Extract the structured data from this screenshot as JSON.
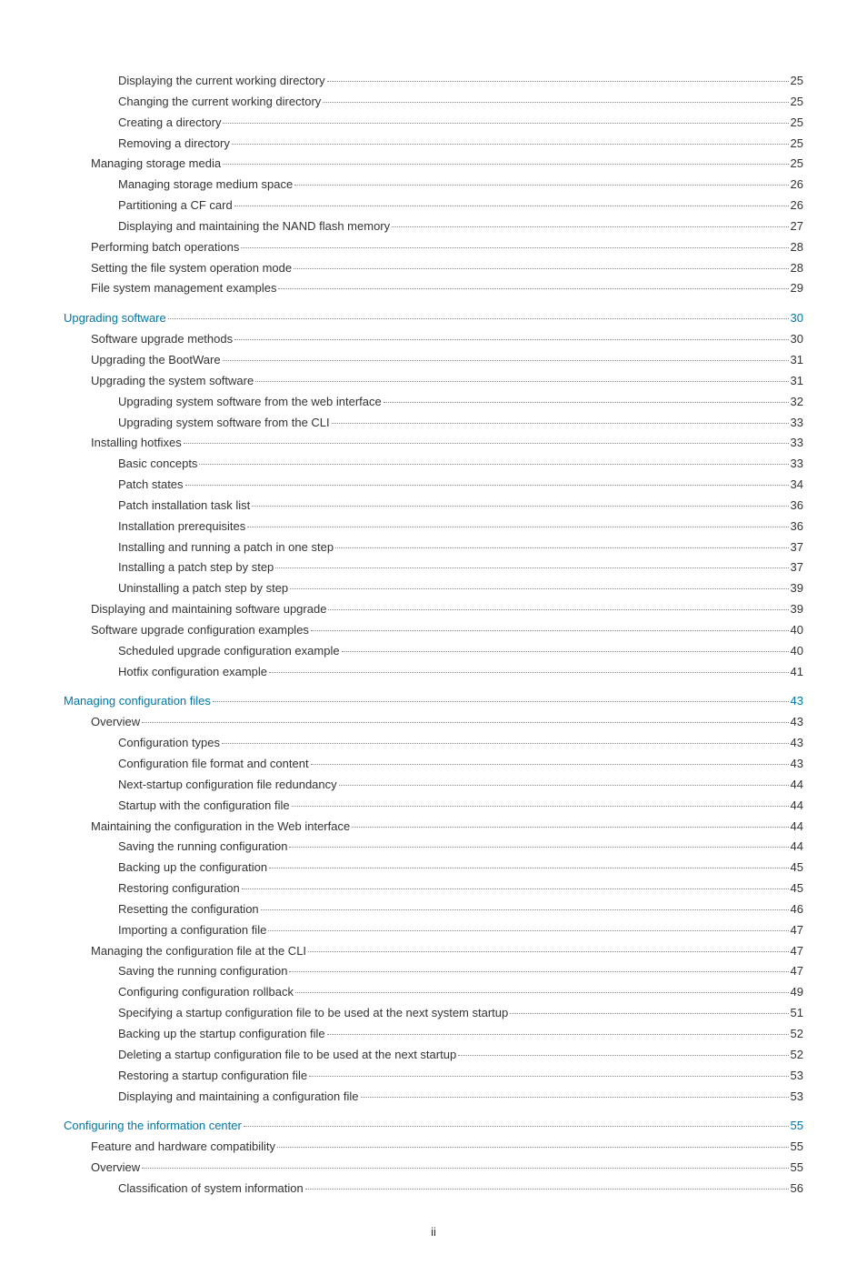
{
  "page_footer": "ii",
  "toc": [
    {
      "label": "Displaying the current working directory",
      "page": "25",
      "indent": 2,
      "link": false,
      "gap": false
    },
    {
      "label": "Changing the current working directory",
      "page": "25",
      "indent": 2,
      "link": false,
      "gap": false
    },
    {
      "label": "Creating a directory",
      "page": "25",
      "indent": 2,
      "link": false,
      "gap": false
    },
    {
      "label": "Removing a directory",
      "page": "25",
      "indent": 2,
      "link": false,
      "gap": false
    },
    {
      "label": "Managing storage media",
      "page": "25",
      "indent": 1,
      "link": false,
      "gap": false
    },
    {
      "label": "Managing storage medium space",
      "page": "26",
      "indent": 2,
      "link": false,
      "gap": false
    },
    {
      "label": "Partitioning a CF card",
      "page": "26",
      "indent": 2,
      "link": false,
      "gap": false
    },
    {
      "label": "Displaying and maintaining the NAND flash memory",
      "page": "27",
      "indent": 2,
      "link": false,
      "gap": false
    },
    {
      "label": "Performing batch operations",
      "page": "28",
      "indent": 1,
      "link": false,
      "gap": false
    },
    {
      "label": "Setting the file system operation mode",
      "page": "28",
      "indent": 1,
      "link": false,
      "gap": false
    },
    {
      "label": "File system management examples",
      "page": "29",
      "indent": 1,
      "link": false,
      "gap": false
    },
    {
      "label": "Upgrading software",
      "page": "30",
      "indent": 0,
      "link": true,
      "gap": true
    },
    {
      "label": "Software upgrade methods",
      "page": "30",
      "indent": 1,
      "link": false,
      "gap": false
    },
    {
      "label": "Upgrading the BootWare",
      "page": "31",
      "indent": 1,
      "link": false,
      "gap": false
    },
    {
      "label": "Upgrading the system software",
      "page": "31",
      "indent": 1,
      "link": false,
      "gap": false
    },
    {
      "label": "Upgrading system software from the web interface",
      "page": "32",
      "indent": 2,
      "link": false,
      "gap": false
    },
    {
      "label": "Upgrading system software from the CLI",
      "page": "33",
      "indent": 2,
      "link": false,
      "gap": false
    },
    {
      "label": "Installing hotfixes",
      "page": "33",
      "indent": 1,
      "link": false,
      "gap": false
    },
    {
      "label": "Basic concepts",
      "page": "33",
      "indent": 2,
      "link": false,
      "gap": false
    },
    {
      "label": "Patch states",
      "page": "34",
      "indent": 2,
      "link": false,
      "gap": false
    },
    {
      "label": "Patch installation task list",
      "page": "36",
      "indent": 2,
      "link": false,
      "gap": false
    },
    {
      "label": "Installation prerequisites",
      "page": "36",
      "indent": 2,
      "link": false,
      "gap": false
    },
    {
      "label": "Installing and running a patch in one step",
      "page": "37",
      "indent": 2,
      "link": false,
      "gap": false
    },
    {
      "label": "Installing a patch step by step",
      "page": "37",
      "indent": 2,
      "link": false,
      "gap": false
    },
    {
      "label": "Uninstalling a patch step by step",
      "page": "39",
      "indent": 2,
      "link": false,
      "gap": false
    },
    {
      "label": "Displaying and maintaining software upgrade",
      "page": "39",
      "indent": 1,
      "link": false,
      "gap": false
    },
    {
      "label": "Software upgrade configuration examples",
      "page": "40",
      "indent": 1,
      "link": false,
      "gap": false
    },
    {
      "label": "Scheduled upgrade configuration example",
      "page": "40",
      "indent": 2,
      "link": false,
      "gap": false
    },
    {
      "label": "Hotfix configuration example",
      "page": "41",
      "indent": 2,
      "link": false,
      "gap": false
    },
    {
      "label": "Managing configuration files",
      "page": "43",
      "indent": 0,
      "link": true,
      "gap": true
    },
    {
      "label": "Overview",
      "page": "43",
      "indent": 1,
      "link": false,
      "gap": false
    },
    {
      "label": "Configuration types",
      "page": "43",
      "indent": 2,
      "link": false,
      "gap": false
    },
    {
      "label": "Configuration file format and content",
      "page": "43",
      "indent": 2,
      "link": false,
      "gap": false
    },
    {
      "label": "Next-startup configuration file redundancy",
      "page": "44",
      "indent": 2,
      "link": false,
      "gap": false
    },
    {
      "label": "Startup with the configuration file",
      "page": "44",
      "indent": 2,
      "link": false,
      "gap": false
    },
    {
      "label": "Maintaining the configuration in the Web interface",
      "page": "44",
      "indent": 1,
      "link": false,
      "gap": false
    },
    {
      "label": "Saving the running configuration",
      "page": "44",
      "indent": 2,
      "link": false,
      "gap": false
    },
    {
      "label": "Backing up the configuration",
      "page": "45",
      "indent": 2,
      "link": false,
      "gap": false
    },
    {
      "label": "Restoring configuration",
      "page": "45",
      "indent": 2,
      "link": false,
      "gap": false
    },
    {
      "label": "Resetting the configuration",
      "page": "46",
      "indent": 2,
      "link": false,
      "gap": false
    },
    {
      "label": "Importing a configuration file",
      "page": "47",
      "indent": 2,
      "link": false,
      "gap": false
    },
    {
      "label": "Managing the configuration file at the CLI",
      "page": "47",
      "indent": 1,
      "link": false,
      "gap": false
    },
    {
      "label": "Saving the running configuration",
      "page": "47",
      "indent": 2,
      "link": false,
      "gap": false
    },
    {
      "label": "Configuring configuration rollback",
      "page": "49",
      "indent": 2,
      "link": false,
      "gap": false
    },
    {
      "label": "Specifying a startup configuration file to be used at the next system startup",
      "page": "51",
      "indent": 2,
      "link": false,
      "gap": false
    },
    {
      "label": "Backing up the startup configuration file",
      "page": "52",
      "indent": 2,
      "link": false,
      "gap": false
    },
    {
      "label": "Deleting a startup configuration file to be used at the next startup",
      "page": "52",
      "indent": 2,
      "link": false,
      "gap": false
    },
    {
      "label": "Restoring a startup configuration file",
      "page": "53",
      "indent": 2,
      "link": false,
      "gap": false
    },
    {
      "label": "Displaying and maintaining a configuration file",
      "page": "53",
      "indent": 2,
      "link": false,
      "gap": false
    },
    {
      "label": "Configuring the information center",
      "page": "55",
      "indent": 0,
      "link": true,
      "gap": true
    },
    {
      "label": "Feature and hardware compatibility",
      "page": "55",
      "indent": 1,
      "link": false,
      "gap": false
    },
    {
      "label": "Overview",
      "page": "55",
      "indent": 1,
      "link": false,
      "gap": false
    },
    {
      "label": "Classification of system information",
      "page": "56",
      "indent": 2,
      "link": false,
      "gap": false
    }
  ]
}
